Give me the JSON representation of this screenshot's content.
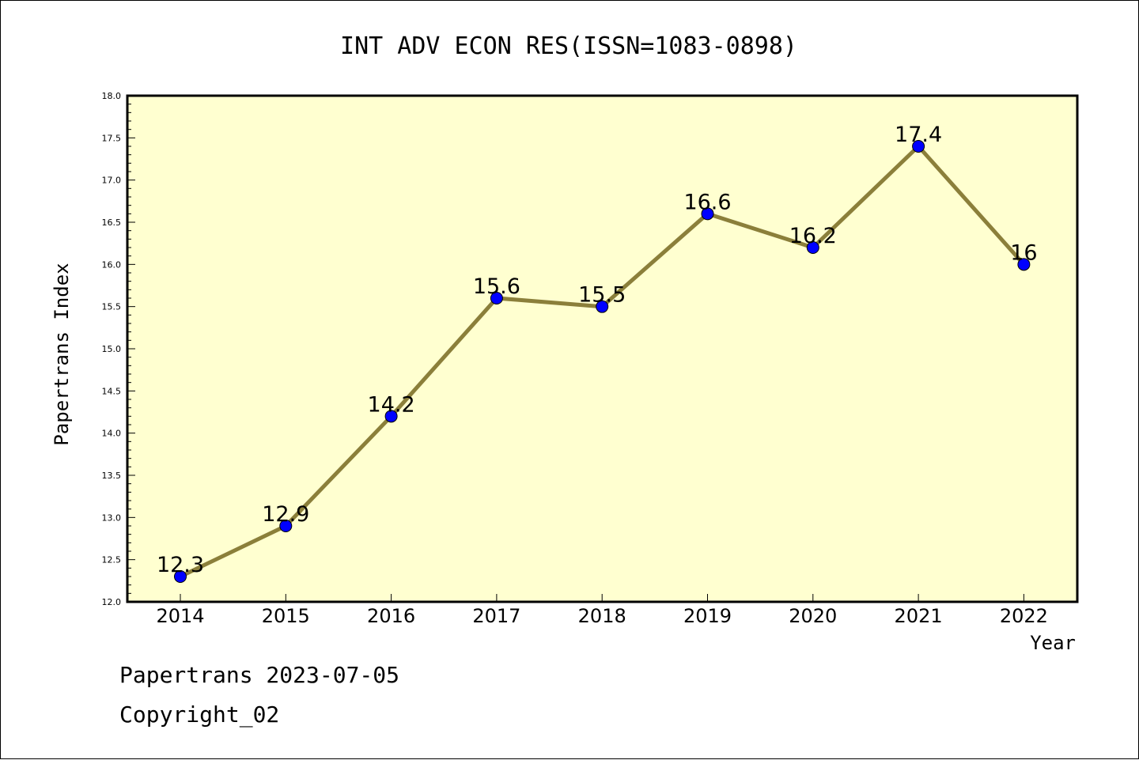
{
  "chart_data": {
    "type": "line",
    "title": "INT ADV ECON RES(ISSN=1083-0898)",
    "xlabel": "Year",
    "ylabel": "Papertrans Index",
    "categories": [
      "2014",
      "2015",
      "2016",
      "2017",
      "2018",
      "2019",
      "2020",
      "2021",
      "2022"
    ],
    "series": [
      {
        "values": [
          12.3,
          12.9,
          14.2,
          15.6,
          15.5,
          16.6,
          16.2,
          17.4,
          16.0
        ]
      }
    ],
    "data_labels": [
      "12.3",
      "12.9",
      "14.2",
      "15.6",
      "15.5",
      "16.6",
      "16.2",
      "17.4",
      "16"
    ],
    "ylim": [
      12.0,
      18.0
    ],
    "yticks": [
      "12.0",
      "12.5",
      "13.0",
      "13.5",
      "14.0",
      "14.5",
      "15.0",
      "15.5",
      "16.0",
      "16.5",
      "17.0",
      "17.5",
      "18.0"
    ],
    "grid": false,
    "legend": "none",
    "colors": {
      "plot_background": "#ffffd0",
      "line": "#8b7f3a",
      "marker": "#0000ff"
    }
  },
  "footer": {
    "line1": "Papertrans 2023-07-05",
    "line2": "Copyright_02"
  }
}
